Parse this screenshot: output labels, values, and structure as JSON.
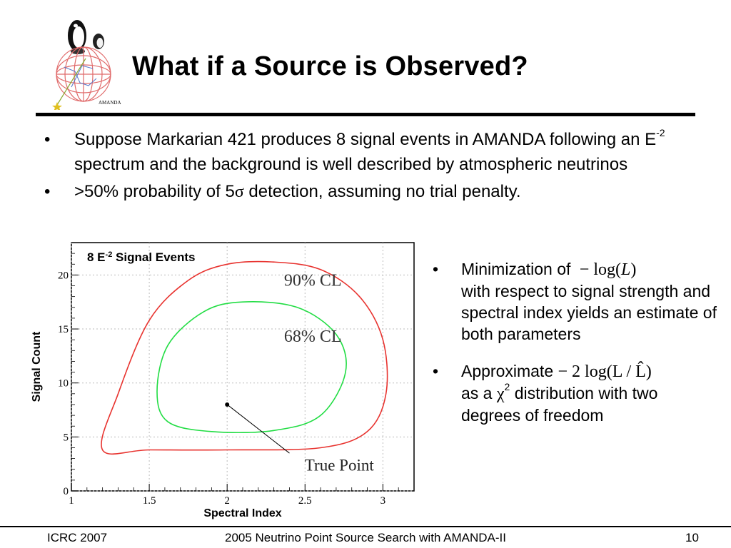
{
  "slide": {
    "title": "What if a Source is Observed?",
    "logo_text": "AMANDA",
    "top_bullets": {
      "b1_a": "Suppose Markarian 421 produces 8 signal events in AMANDA following an E",
      "b1_sup": "-2",
      "b1_b": " spectrum and the background is well described by atmospheric neutrinos",
      "b2_a": ">50% probability of 5",
      "b2_sigma": "σ",
      "b2_b": " detection, assuming no trial penalty."
    },
    "right_bullets": {
      "r1_a": "Minimization of",
      "r1_math_prefix": "− log(",
      "r1_math_var": "L",
      "r1_math_suffix": ")",
      "r1_b": "with respect to signal strength and spectral index yields an estimate of both parameters",
      "r2_a": "Approximate",
      "r2_math": "− 2 log(L / L̂)",
      "r2_b1": "as a ",
      "r2_chi": "χ",
      "r2_sup": "2",
      "r2_b2": " distribution with two degrees of freedom"
    },
    "bullet_symbol": "•",
    "footer": {
      "left": "ICRC 2007",
      "center": "2005 Neutrino Point Source Search with AMANDA-II",
      "right": "10"
    }
  },
  "chart_data": {
    "type": "contour",
    "title_prefix": "8 E",
    "title_sup": "-2",
    "title_suffix": " Signal Events",
    "xlabel": "Spectral Index",
    "ylabel": "Signal Count",
    "xlim": [
      1,
      3.2
    ],
    "ylim": [
      0,
      23
    ],
    "xticks": [
      "1",
      "1.5",
      "2",
      "2.5",
      "3"
    ],
    "xtick_values": [
      1,
      1.5,
      2,
      2.5,
      3
    ],
    "yticks": [
      "0",
      "5",
      "10",
      "15",
      "20"
    ],
    "ytick_values": [
      0,
      5,
      10,
      15,
      20
    ],
    "grid": true,
    "contours": [
      {
        "label": "90% CL",
        "color": "#e8332f",
        "points": [
          [
            1.2,
            3.8
          ],
          [
            1.3,
            9.0
          ],
          [
            1.5,
            15.8
          ],
          [
            1.75,
            19.5
          ],
          [
            2.0,
            21.0
          ],
          [
            2.3,
            21.2
          ],
          [
            2.6,
            20.5
          ],
          [
            2.85,
            18.0
          ],
          [
            3.0,
            14.0
          ],
          [
            3.02,
            9.0
          ],
          [
            2.9,
            5.5
          ],
          [
            2.6,
            4.0
          ],
          [
            2.0,
            3.8
          ],
          [
            1.5,
            3.8
          ]
        ]
      },
      {
        "label": "68% CL",
        "color": "#22dd44",
        "points": [
          [
            1.55,
            9.2
          ],
          [
            1.62,
            13.5
          ],
          [
            1.85,
            16.6
          ],
          [
            2.1,
            17.5
          ],
          [
            2.45,
            17.0
          ],
          [
            2.7,
            14.5
          ],
          [
            2.76,
            11.0
          ],
          [
            2.6,
            7.0
          ],
          [
            2.3,
            5.6
          ],
          [
            1.9,
            5.5
          ],
          [
            1.62,
            6.4
          ]
        ]
      }
    ],
    "true_point": {
      "x": 2.0,
      "y": 8.0,
      "label": "True Point"
    }
  }
}
